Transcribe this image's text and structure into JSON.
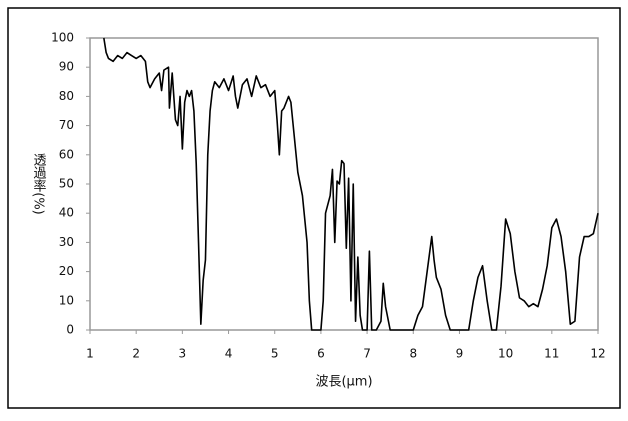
{
  "chart_data": {
    "type": "line",
    "xlabel": "波長(μm)",
    "ylabel": "透過率(%)",
    "xlim": [
      1,
      12
    ],
    "xticks": [
      1,
      2,
      3,
      4,
      5,
      6,
      7,
      8,
      9,
      10,
      11,
      12
    ],
    "ylim": [
      0,
      100
    ],
    "yticks": [
      0,
      10,
      20,
      30,
      40,
      50,
      60,
      70,
      80,
      90,
      100
    ],
    "grid": false,
    "series": [
      {
        "color": "#000000",
        "x": [
          1.3,
          1.35,
          1.4,
          1.5,
          1.6,
          1.7,
          1.8,
          1.9,
          2.0,
          2.1,
          2.2,
          2.25,
          2.3,
          2.4,
          2.5,
          2.55,
          2.6,
          2.7,
          2.72,
          2.78,
          2.85,
          2.9,
          2.95,
          3.0,
          3.05,
          3.1,
          3.15,
          3.2,
          3.25,
          3.3,
          3.35,
          3.4,
          3.45,
          3.5,
          3.55,
          3.6,
          3.65,
          3.7,
          3.8,
          3.9,
          4.0,
          4.1,
          4.15,
          4.2,
          4.3,
          4.4,
          4.5,
          4.6,
          4.7,
          4.8,
          4.9,
          5.0,
          5.05,
          5.1,
          5.15,
          5.2,
          5.3,
          5.35,
          5.4,
          5.5,
          5.6,
          5.7,
          5.75,
          5.8,
          5.85,
          6.0,
          6.05,
          6.1,
          6.2,
          6.25,
          6.3,
          6.35,
          6.4,
          6.45,
          6.5,
          6.55,
          6.6,
          6.65,
          6.7,
          6.75,
          6.8,
          6.85,
          6.9,
          7.0,
          7.05,
          7.1,
          7.2,
          7.3,
          7.35,
          7.4,
          7.5,
          7.6,
          7.8,
          8.0,
          8.1,
          8.2,
          8.3,
          8.4,
          8.45,
          8.5,
          8.6,
          8.7,
          8.8,
          9.0,
          9.2,
          9.3,
          9.4,
          9.5,
          9.6,
          9.7,
          9.8,
          9.9,
          10.0,
          10.1,
          10.2,
          10.3,
          10.4,
          10.5,
          10.6,
          10.7,
          10.8,
          10.9,
          11.0,
          11.1,
          11.2,
          11.3,
          11.4,
          11.5,
          11.6,
          11.7,
          11.8,
          11.9,
          12.0
        ],
        "values": [
          100,
          95,
          93,
          92,
          94,
          93,
          95,
          94,
          93,
          94,
          92,
          85,
          83,
          86,
          88,
          82,
          89,
          90,
          76,
          88,
          72,
          70,
          80,
          62,
          78,
          82,
          80,
          82,
          75,
          57,
          30,
          2,
          17,
          24,
          60,
          75,
          82,
          85,
          83,
          86,
          82,
          87,
          80,
          76,
          84,
          86,
          80,
          87,
          83,
          84,
          80,
          82,
          72,
          60,
          75,
          76,
          80,
          78,
          70,
          54,
          46,
          30,
          10,
          0,
          0,
          0,
          10,
          40,
          46,
          55,
          30,
          51,
          50,
          58,
          57,
          28,
          52,
          10,
          50,
          3,
          25,
          5,
          0,
          0,
          27,
          0,
          0,
          3,
          16,
          8,
          0,
          0,
          0,
          0,
          5,
          8,
          20,
          32,
          24,
          18,
          14,
          5,
          0,
          0,
          0,
          10,
          18,
          22,
          10,
          0,
          0,
          15,
          38,
          33,
          20,
          11,
          10,
          8,
          9,
          8,
          14,
          22,
          35,
          38,
          32,
          20,
          2,
          3,
          25,
          32,
          32,
          33,
          40
        ]
      }
    ]
  }
}
